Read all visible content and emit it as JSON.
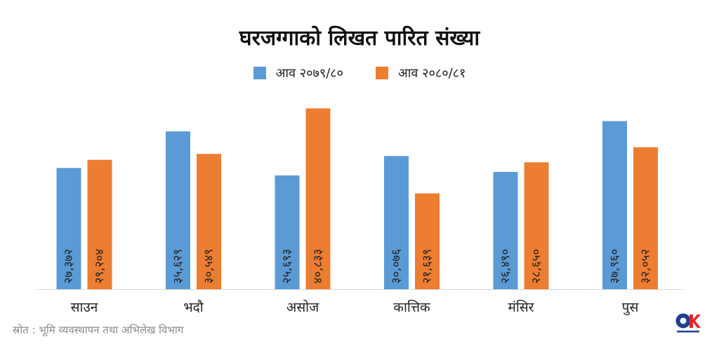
{
  "chart_data": {
    "type": "bar",
    "title": "घरजग्गाको लिखत पारित संख्या",
    "categories": [
      "साउन",
      "भदौ",
      "असोज",
      "कात्तिक",
      "मंसिर",
      "पुस"
    ],
    "series": [
      {
        "name": "आव २०७९/८०",
        "color": "#5b9bd5",
        "values": [
          27372,
          35629,
          25693,
          30076,
          26490,
          37960
        ],
        "labels": [
          "२७,३७२",
          "३५,६२९",
          "२५,६९३",
          "३०,०७६",
          "२६,४९०",
          "३७,९६०"
        ]
      },
      {
        "name": "आव २०८०/८१",
        "color": "#ed7d31",
        "values": [
          29204,
          30549,
          40833,
          21639,
          28650,
          32052
        ],
        "labels": [
          "२९,२०४",
          "३०,५४९",
          "४०,८३३",
          "२१,६३९",
          "२८,६५०",
          "३२,०५२"
        ]
      }
    ],
    "ylim": [
      0,
      42000
    ],
    "grid": false,
    "legend": "top",
    "data_labels": "inside-base-rotated"
  },
  "source": "स्रोत : भूमि व्यवस्थापन तथा अभिलेख विभाग",
  "logo": {
    "text": "onlinekhabar",
    "colors": [
      "#1f3f8f",
      "#e3262d"
    ]
  }
}
